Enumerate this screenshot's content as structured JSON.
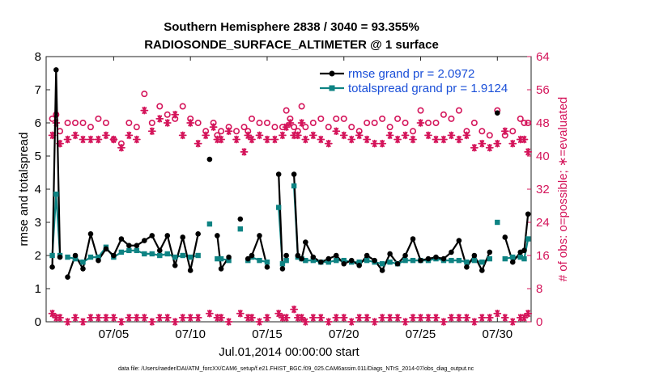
{
  "chart_data": {
    "type": "line",
    "title": "Southern Hemisphere 2838 / 3040 = 93.355%",
    "subtitle": "RADIOSONDE_SURFACE_ALTIMETER @ 1 surface",
    "xlabel": "Jul.01,2014 00:00:00 start",
    "ylabel_left": "rmse and totalspread",
    "ylabel_right": "# of obs: o=possible; ∗=evaluated",
    "footnote": "data file: /Users/raeder/DAI/ATM_forcXX/CAM6_setup/f.e21.FHIST_BGC.f09_025.CAM6assim.011/Diags_NTrS_2014-07/obs_diag_output.nc",
    "xlim": [
      0.6,
      32.2
    ],
    "ylim_left": [
      0,
      8
    ],
    "ylim_right": [
      0,
      64
    ],
    "x_tick_labels": [
      "07/05",
      "07/10",
      "07/15",
      "07/20",
      "07/25",
      "07/30"
    ],
    "x_tick_values": [
      5,
      10,
      15,
      20,
      25,
      30
    ],
    "y_left_ticks": [
      "0",
      "1",
      "2",
      "3",
      "4",
      "5",
      "6",
      "7",
      "8"
    ],
    "y_right_ticks": [
      "0",
      "8",
      "16",
      "24",
      "32",
      "40",
      "48",
      "56",
      "64"
    ],
    "colors": {
      "rmse": "#000000",
      "spread": "#0e8383",
      "obs": "#d4145a",
      "legend_text": "#1a4fd8"
    },
    "x": [
      1.0,
      1.25,
      1.5,
      1.75,
      2.0,
      2.5,
      3.0,
      3.5,
      4.0,
      4.5,
      5.0,
      5.5,
      6.0,
      6.5,
      7.0,
      7.5,
      8.0,
      8.5,
      9.0,
      9.5,
      10.0,
      10.5,
      11.0,
      11.25,
      11.5,
      11.75,
      12.0,
      12.5,
      13.0,
      13.25,
      13.5,
      13.75,
      14.0,
      14.5,
      15.0,
      15.5,
      15.75,
      16.0,
      16.25,
      16.5,
      16.75,
      17.0,
      17.25,
      17.5,
      18.0,
      18.5,
      19.0,
      19.5,
      20.0,
      20.5,
      21.0,
      21.5,
      22.0,
      22.5,
      23.0,
      23.5,
      24.0,
      24.5,
      25.0,
      25.5,
      26.0,
      26.5,
      27.0,
      27.5,
      28.0,
      28.5,
      29.0,
      29.5,
      29.75,
      30.0,
      30.25,
      30.5,
      31.0,
      31.5,
      31.75,
      32.0
    ],
    "series": [
      {
        "name": "rmse grand pr = 2.0972",
        "values": [
          1.65,
          7.6,
          1.95,
          null,
          1.35,
          2.0,
          1.6,
          2.65,
          1.85,
          2.2,
          2.0,
          2.5,
          2.3,
          2.3,
          2.45,
          2.6,
          2.15,
          2.6,
          1.7,
          2.55,
          1.55,
          2.65,
          null,
          4.9,
          null,
          2.6,
          1.6,
          1.95,
          null,
          3.1,
          null,
          1.9,
          2.0,
          2.6,
          1.65,
          null,
          4.45,
          1.6,
          2.0,
          null,
          4.45,
          2.0,
          1.9,
          2.4,
          1.95,
          1.8,
          1.9,
          2.0,
          1.75,
          1.85,
          1.7,
          2.0,
          1.85,
          1.55,
          2.05,
          1.75,
          2.0,
          2.5,
          1.85,
          1.9,
          1.95,
          1.9,
          2.1,
          2.45,
          1.65,
          2.0,
          1.55,
          2.1,
          null,
          6.3,
          null,
          2.55,
          1.8,
          2.1,
          2.15,
          3.25
        ]
      },
      {
        "name": "totalspread grand pr = 1.9124",
        "values": [
          2.0,
          3.85,
          2.0,
          null,
          1.95,
          1.9,
          1.8,
          1.95,
          1.95,
          2.25,
          1.95,
          2.1,
          2.15,
          2.15,
          2.05,
          2.05,
          2.0,
          2.05,
          1.95,
          2.0,
          1.95,
          2.0,
          null,
          2.95,
          null,
          1.9,
          1.9,
          1.85,
          null,
          2.8,
          null,
          1.85,
          1.95,
          1.85,
          1.8,
          null,
          3.45,
          1.75,
          1.85,
          null,
          4.1,
          1.95,
          1.9,
          1.85,
          1.85,
          1.8,
          1.8,
          1.85,
          1.85,
          1.8,
          1.8,
          1.85,
          1.8,
          1.75,
          1.8,
          1.75,
          1.85,
          1.85,
          1.85,
          1.85,
          1.9,
          1.85,
          1.85,
          1.85,
          1.8,
          1.85,
          1.8,
          1.9,
          null,
          3.0,
          null,
          1.9,
          1.95,
          1.95,
          1.9,
          2.5
        ]
      },
      {
        "name": "possible",
        "values": [
          49,
          50,
          46,
          null,
          48,
          48,
          48,
          47,
          49,
          48,
          44,
          43,
          48,
          47,
          55,
          48,
          52,
          50,
          49,
          52,
          49,
          48,
          46,
          null,
          48,
          45,
          46,
          47,
          46,
          null,
          47,
          46,
          49,
          48,
          48,
          47,
          null,
          47,
          51,
          49,
          47,
          46,
          52,
          47,
          48,
          49,
          47,
          49,
          49,
          47,
          46,
          48,
          48,
          49,
          47,
          49,
          48,
          46,
          51,
          48,
          48,
          50,
          49,
          51,
          46,
          48,
          46,
          45,
          null,
          51,
          null,
          45,
          46,
          49,
          48,
          48
        ]
      },
      {
        "name": "evaluated",
        "values": [
          45,
          48,
          43,
          null,
          44,
          45,
          44,
          44,
          44,
          45,
          44,
          42,
          45,
          44,
          51,
          46,
          49,
          48,
          50,
          45,
          48,
          43,
          45,
          null,
          47,
          44,
          44,
          46,
          44,
          null,
          41,
          45,
          44,
          45,
          44,
          44,
          null,
          45,
          47,
          48,
          45,
          45,
          48,
          44,
          45,
          44,
          43,
          46,
          45,
          44,
          45,
          44,
          43,
          43,
          45,
          44,
          45,
          44,
          48,
          45,
          44,
          44,
          45,
          44,
          45,
          42,
          43,
          42,
          null,
          43,
          null,
          46,
          43,
          44,
          44,
          41
        ]
      }
    ],
    "evaluated_bottom": [
      2,
      1,
      1,
      null,
      0,
      1,
      0,
      1,
      1,
      1,
      1,
      0,
      1,
      1,
      1,
      0,
      1,
      1,
      0,
      1,
      1,
      1,
      null,
      2,
      null,
      1,
      1,
      0,
      null,
      2,
      null,
      1,
      1,
      0,
      1,
      null,
      2,
      1,
      1,
      null,
      3,
      1,
      1,
      0,
      1,
      1,
      0,
      1,
      1,
      0,
      1,
      1,
      0,
      1,
      1,
      1,
      0,
      1,
      1,
      1,
      1,
      0,
      1,
      1,
      1,
      0,
      1,
      1,
      null,
      2,
      null,
      1,
      0,
      1,
      1,
      2
    ]
  }
}
